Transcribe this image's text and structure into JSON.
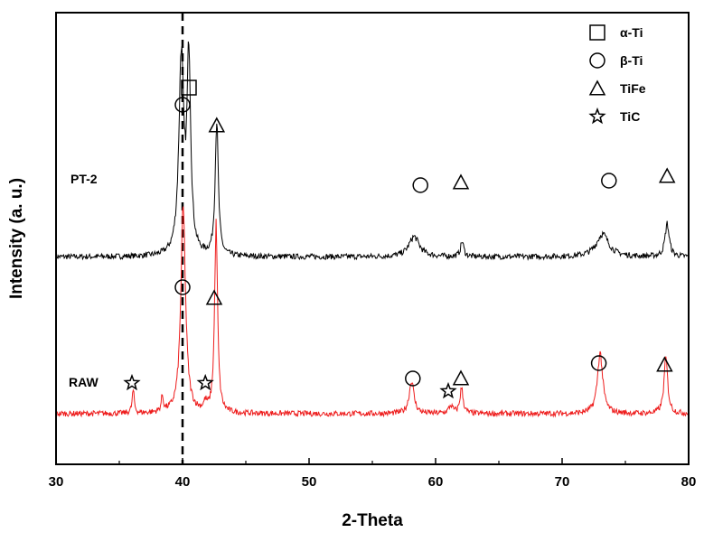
{
  "chart_data": {
    "type": "line",
    "xlabel": "2-Theta",
    "ylabel": "Intensity (a. u.)",
    "xlim": [
      30,
      80
    ],
    "xticks": [
      "30",
      "40",
      "50",
      "60",
      "70",
      "80"
    ],
    "reference_line_x": 40,
    "series": [
      {
        "name": "PT-2",
        "color": "#000000",
        "baseline": 0.62,
        "peaks": [
          {
            "x": 39.9,
            "height": 0.78,
            "width": 0.45
          },
          {
            "x": 40.5,
            "height": 0.77,
            "width": 0.35
          },
          {
            "x": 42.7,
            "height": 0.53,
            "width": 0.3
          },
          {
            "x": 58.3,
            "height": 0.08,
            "width": 1.0
          },
          {
            "x": 62.1,
            "height": 0.06,
            "width": 0.3
          },
          {
            "x": 73.2,
            "height": 0.09,
            "width": 1.2
          },
          {
            "x": 78.3,
            "height": 0.13,
            "width": 0.4
          }
        ]
      },
      {
        "name": "RAW",
        "color": "#ee1c1c",
        "baseline": 0.0,
        "peaks": [
          {
            "x": 36.1,
            "height": 0.09,
            "width": 0.2
          },
          {
            "x": 38.4,
            "height": 0.06,
            "width": 0.2
          },
          {
            "x": 40.05,
            "height": 0.81,
            "width": 0.45
          },
          {
            "x": 42.65,
            "height": 0.74,
            "width": 0.28
          },
          {
            "x": 41.8,
            "height": 0.03,
            "width": 0.3
          },
          {
            "x": 58.1,
            "height": 0.13,
            "width": 0.45
          },
          {
            "x": 62.05,
            "height": 0.1,
            "width": 0.3
          },
          {
            "x": 61.2,
            "height": 0.03,
            "width": 0.4
          },
          {
            "x": 73.0,
            "height": 0.24,
            "width": 0.5
          },
          {
            "x": 78.2,
            "height": 0.22,
            "width": 0.35
          }
        ]
      }
    ],
    "legend": [
      {
        "symbol": "square",
        "label": "α-Ti"
      },
      {
        "symbol": "circle",
        "label": "β-Ti"
      },
      {
        "symbol": "triangle",
        "label": "TiFe"
      },
      {
        "symbol": "star",
        "label": "TiC"
      }
    ],
    "legend_position": "top-right",
    "annotations": [
      {
        "series": "PT-2",
        "symbol": "circle",
        "x": 40.0
      },
      {
        "series": "PT-2",
        "symbol": "square",
        "x": 40.5
      },
      {
        "series": "PT-2",
        "symbol": "triangle",
        "x": 42.7
      },
      {
        "series": "PT-2",
        "symbol": "circle",
        "x": 58.8
      },
      {
        "series": "PT-2",
        "symbol": "triangle",
        "x": 62.0
      },
      {
        "series": "PT-2",
        "symbol": "circle",
        "x": 73.7
      },
      {
        "series": "PT-2",
        "symbol": "triangle",
        "x": 78.3
      },
      {
        "series": "RAW",
        "symbol": "star",
        "x": 36.0
      },
      {
        "series": "RAW",
        "symbol": "circle",
        "x": 40.0
      },
      {
        "series": "RAW",
        "symbol": "star",
        "x": 41.8
      },
      {
        "series": "RAW",
        "symbol": "triangle",
        "x": 42.5
      },
      {
        "series": "RAW",
        "symbol": "circle",
        "x": 58.2
      },
      {
        "series": "RAW",
        "symbol": "star",
        "x": 61.0
      },
      {
        "series": "RAW",
        "symbol": "triangle",
        "x": 62.0
      },
      {
        "series": "RAW",
        "symbol": "circle",
        "x": 72.9
      },
      {
        "series": "RAW",
        "symbol": "triangle",
        "x": 78.1
      }
    ]
  }
}
